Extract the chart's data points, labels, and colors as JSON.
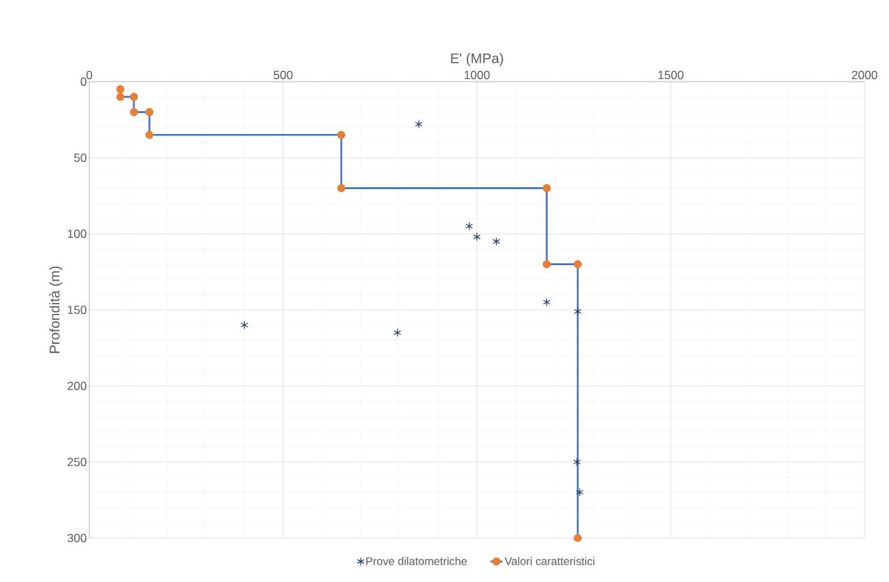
{
  "chart_data": {
    "type": "scatter",
    "xlabel": "E' (MPa)",
    "ylabel": "Profondità (m)",
    "xlim": [
      0,
      2000
    ],
    "xticks": [
      0,
      500,
      1000,
      1500,
      2000
    ],
    "ylim": [
      300,
      0
    ],
    "yticks": [
      0,
      50,
      100,
      150,
      200,
      250,
      300
    ],
    "grid": true,
    "legend": "bottom",
    "series": [
      {
        "name": "Prove dilatometriche",
        "marker": "cross",
        "color": "#1f3864",
        "x": [
          850,
          980,
          1000,
          1050,
          400,
          795,
          1180,
          1260,
          1258,
          1265
        ],
        "values": [
          28,
          95,
          102,
          105,
          160,
          165,
          145,
          151,
          250,
          270
        ]
      },
      {
        "name": "Valori caratteristici",
        "type": "line",
        "marker": "circle",
        "color": "#4472c4",
        "x": [
          80,
          80,
          115,
          115,
          155,
          155,
          650,
          650,
          1180,
          1180,
          1260,
          1260
        ],
        "values": [
          5,
          10,
          10,
          20,
          20,
          35,
          35,
          70,
          70,
          120,
          120,
          300
        ]
      }
    ]
  }
}
